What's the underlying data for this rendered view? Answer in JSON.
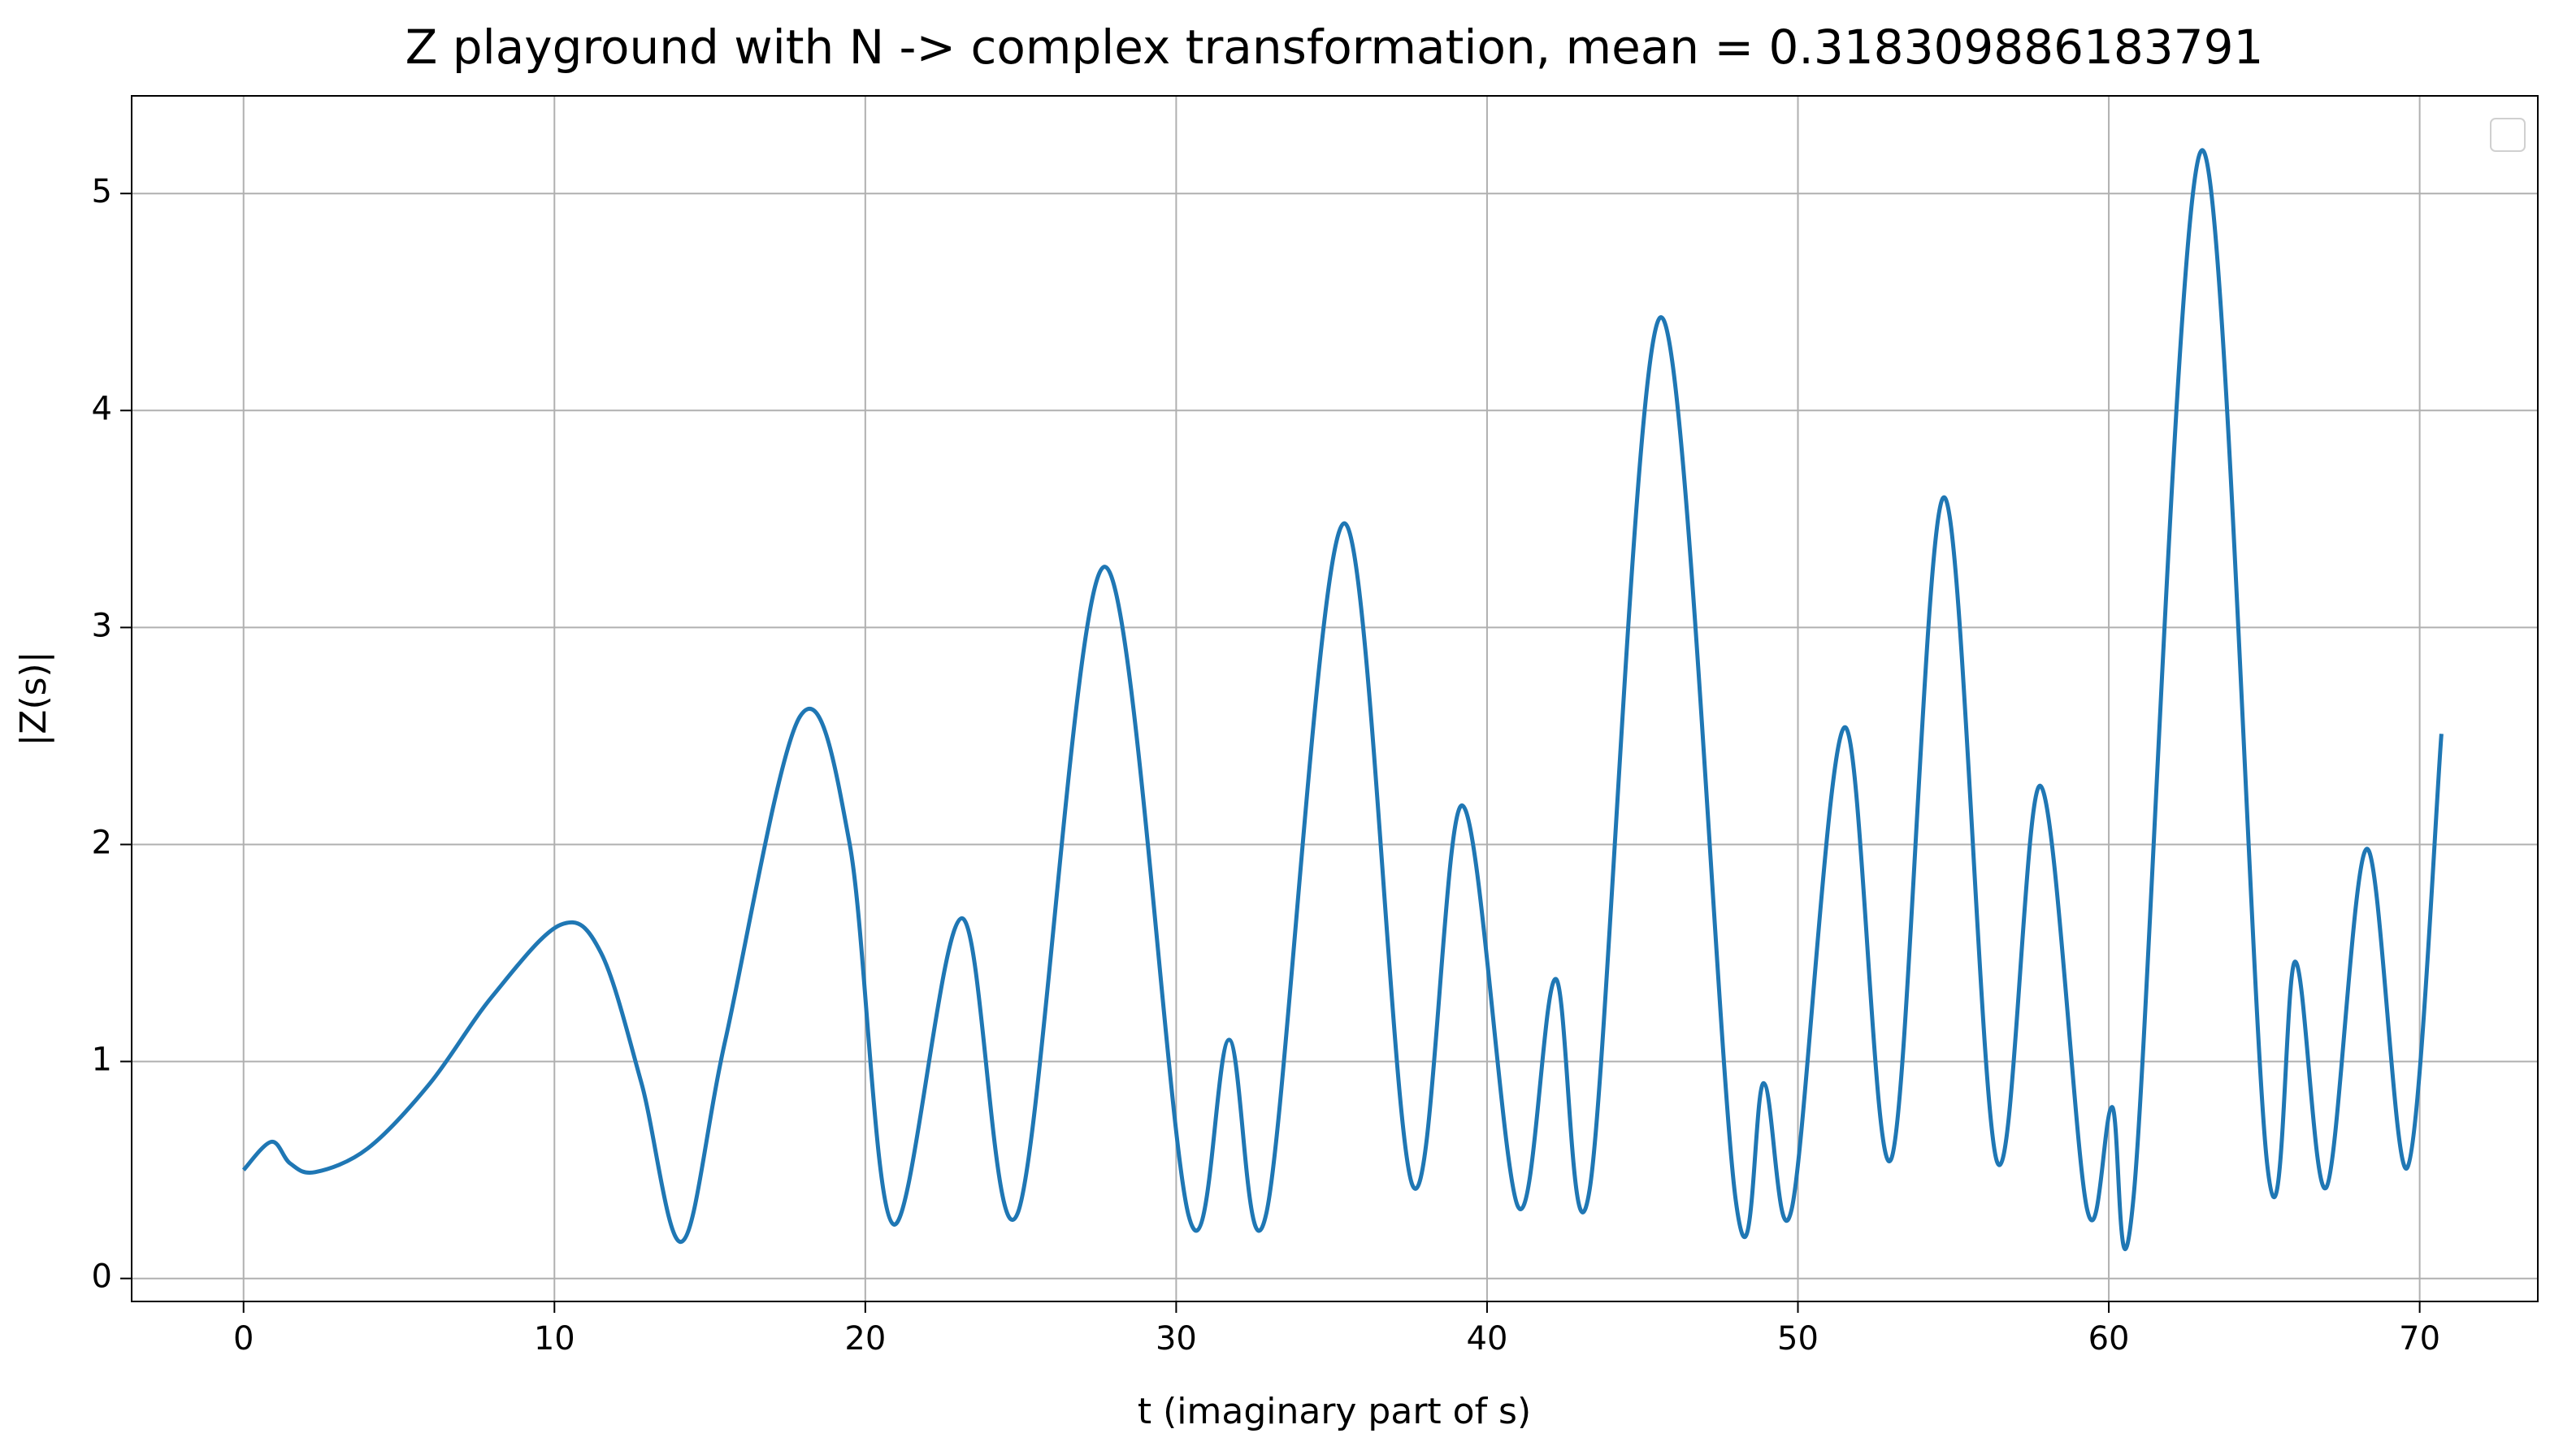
{
  "chart_data": {
    "type": "line",
    "title": "Z playground with N -> complex transformation, mean = 0.318309886183791",
    "x_label": "t (imaginary part of s)",
    "y_label": "|Z(s)|",
    "x": [
      0,
      0.9,
      1.5,
      2.3,
      4,
      6,
      8,
      10.2,
      11.5,
      12.8,
      14.1,
      15.5,
      17.9,
      19.5,
      20.9,
      23.1,
      24.9,
      27.7,
      30.4,
      31.7,
      32.9,
      35.4,
      37.6,
      39.2,
      41.0,
      42.2,
      43.3,
      45.6,
      48.0,
      48.9,
      49.8,
      51.5,
      53.0,
      54.7,
      56.4,
      57.8,
      59.3,
      60.1,
      60.8,
      63.0,
      65.1,
      66.0,
      67.0,
      68.3,
      69.6,
      70.7
    ],
    "series": [
      {
        "color": "#1f77b4",
        "values": [
          0.5,
          0.63,
          0.53,
          0.49,
          0.6,
          0.9,
          1.3,
          1.63,
          1.5,
          0.9,
          0.17,
          1.1,
          2.59,
          2.0,
          0.25,
          1.66,
          0.3,
          3.28,
          0.29,
          1.1,
          0.3,
          3.48,
          0.43,
          2.18,
          0.33,
          1.38,
          0.41,
          4.43,
          0.36,
          0.9,
          0.32,
          2.54,
          0.55,
          3.6,
          0.54,
          2.27,
          0.32,
          0.79,
          0.38,
          5.2,
          0.52,
          1.46,
          0.42,
          1.98,
          0.51,
          2.51
        ]
      }
    ],
    "xlim": [
      -3.6,
      73.8
    ],
    "ylim": [
      -0.106,
      5.45
    ],
    "xticks": [
      0,
      10,
      20,
      30,
      40,
      50,
      60,
      70
    ],
    "yticks": [
      0,
      1,
      2,
      3,
      4,
      5
    ],
    "grid": true,
    "legend": "upper right"
  }
}
